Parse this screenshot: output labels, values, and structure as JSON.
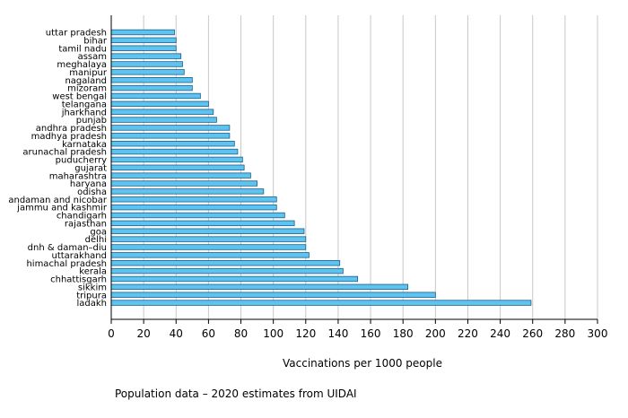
{
  "chart_data": {
    "type": "bar",
    "orientation": "horizontal",
    "categories": [
      "uttar pradesh",
      "bihar",
      "tamil nadu",
      "assam",
      "meghalaya",
      "manipur",
      "nagaland",
      "mizoram",
      "west bengal",
      "telangana",
      "jharkhand",
      "punjab",
      "andhra pradesh",
      "madhya pradesh",
      "karnataka",
      "arunachal pradesh",
      "puducherry",
      "gujarat",
      "maharashtra",
      "haryana",
      "odisha",
      "andaman and nicobar",
      "jammu and kashmir",
      "chandigarh",
      "rajasthan",
      "goa",
      "delhi",
      "dnh & daman–diu",
      "uttarakhand",
      "himachal pradesh",
      "kerala",
      "chhattisgarh",
      "sikkim",
      "tripura",
      "ladakh"
    ],
    "values": [
      39,
      40,
      40,
      43,
      44,
      45,
      50,
      50,
      55,
      60,
      63,
      65,
      73,
      73,
      76,
      78,
      81,
      82,
      86,
      90,
      94,
      102,
      102,
      107,
      113,
      119,
      120,
      120,
      122,
      141,
      143,
      152,
      183,
      200,
      259
    ],
    "xlabel": "Vaccinations per 1000 people",
    "xlim": [
      0,
      300
    ],
    "xticks": [
      0,
      20,
      40,
      60,
      80,
      100,
      120,
      140,
      160,
      180,
      200,
      220,
      240,
      260,
      280,
      300
    ],
    "grid": "vertical",
    "colors": {
      "bar_fill": "#5fc3ef",
      "bar_edge": "#1a5f8c",
      "grid": "#c8c8c8"
    },
    "footnote": "Population data – 2020 estimates from UIDAI"
  }
}
